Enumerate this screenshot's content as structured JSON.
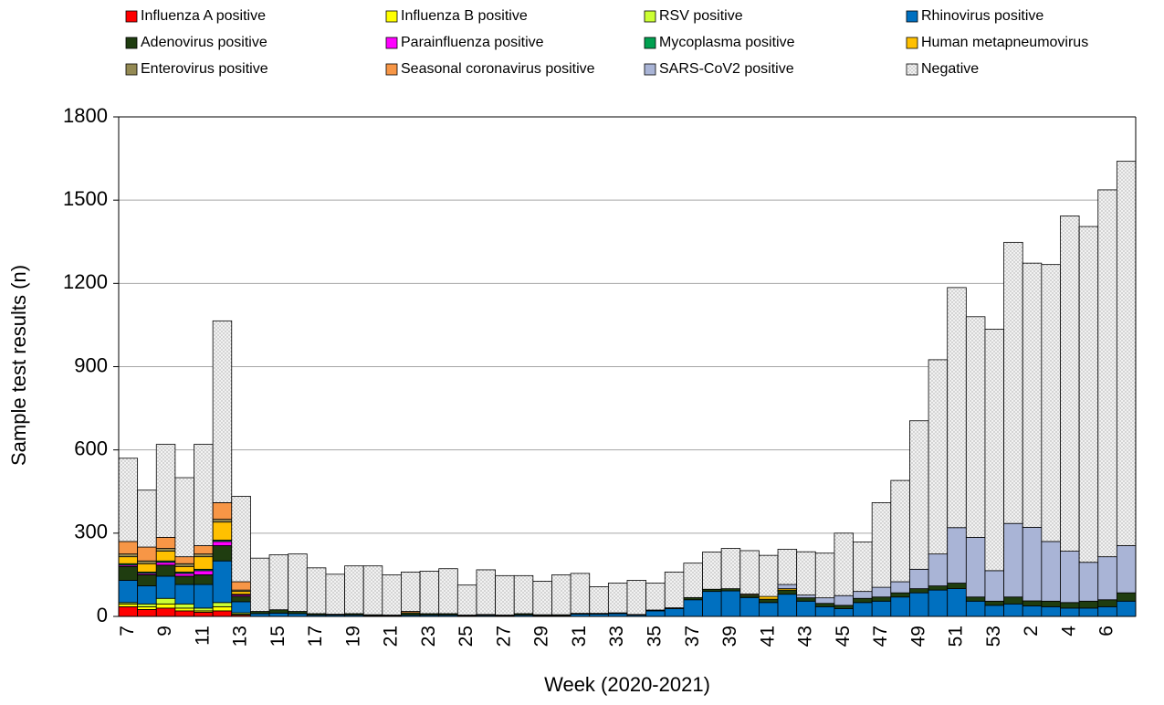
{
  "chart_data": {
    "type": "stacked_bar",
    "y_label": "Sample test results (n)",
    "x_label": "Week (2020-2021)",
    "categories": [
      "7",
      null,
      "9",
      null,
      "11",
      null,
      "13",
      null,
      "15",
      null,
      "17",
      null,
      "19",
      null,
      "21",
      null,
      "23",
      null,
      "25",
      null,
      "27",
      null,
      "29",
      null,
      "31",
      null,
      "33",
      null,
      "35",
      null,
      "37",
      null,
      "39",
      null,
      "41",
      null,
      "43",
      null,
      "45",
      null,
      "47",
      null,
      "49",
      null,
      "51",
      null,
      "53",
      null,
      "2",
      null,
      "4",
      null,
      "6",
      null
    ],
    "ylim": [
      0,
      1800
    ],
    "yticks": [
      0,
      300,
      600,
      900,
      1200,
      1500,
      1800
    ],
    "grid": true,
    "legend": "top",
    "series": [
      {
        "name": "Influenza A positive",
        "color": "#ff0000",
        "values": [
          35,
          25,
          30,
          20,
          15,
          20,
          5,
          0,
          0,
          0,
          0,
          0,
          0,
          0,
          0,
          0,
          0,
          0,
          0,
          0,
          0,
          0,
          0,
          0,
          0,
          0,
          0,
          0,
          0,
          0,
          0,
          0,
          0,
          0,
          0,
          0,
          0,
          0,
          0,
          0,
          0,
          0,
          0,
          0,
          0,
          0,
          0,
          0,
          0,
          0,
          0,
          0,
          0,
          0
        ]
      },
      {
        "name": "Influenza B positive",
        "color": "#ffff00",
        "values": [
          10,
          10,
          15,
          10,
          5,
          15,
          3,
          0,
          0,
          0,
          0,
          0,
          0,
          0,
          0,
          0,
          0,
          0,
          0,
          0,
          0,
          0,
          0,
          0,
          0,
          0,
          0,
          0,
          0,
          0,
          0,
          0,
          0,
          0,
          0,
          0,
          0,
          0,
          0,
          0,
          0,
          0,
          0,
          0,
          0,
          0,
          0,
          0,
          0,
          0,
          0,
          0,
          0,
          0
        ]
      },
      {
        "name": "RSV positive",
        "color": "#ccff33",
        "values": [
          5,
          10,
          20,
          15,
          10,
          15,
          5,
          0,
          0,
          0,
          0,
          0,
          0,
          0,
          0,
          0,
          0,
          0,
          0,
          0,
          0,
          0,
          0,
          0,
          0,
          0,
          0,
          0,
          0,
          0,
          0,
          0,
          0,
          0,
          0,
          0,
          0,
          0,
          0,
          0,
          0,
          0,
          0,
          0,
          0,
          0,
          0,
          0,
          0,
          0,
          0,
          0,
          0,
          0
        ]
      },
      {
        "name": "Rhinovirus positive",
        "color": "#0070c0",
        "values": [
          80,
          65,
          80,
          70,
          85,
          150,
          40,
          10,
          12,
          10,
          5,
          5,
          5,
          3,
          3,
          5,
          5,
          5,
          3,
          4,
          3,
          5,
          3,
          3,
          8,
          8,
          10,
          5,
          20,
          28,
          60,
          90,
          92,
          68,
          50,
          80,
          55,
          35,
          28,
          50,
          55,
          70,
          85,
          95,
          100,
          55,
          40,
          45,
          38,
          35,
          30,
          30,
          35,
          55
        ]
      },
      {
        "name": "Adenovirus positive",
        "color": "#1f3d10",
        "values": [
          50,
          40,
          40,
          30,
          35,
          55,
          20,
          8,
          12,
          8,
          5,
          3,
          5,
          3,
          2,
          8,
          5,
          5,
          2,
          3,
          2,
          5,
          3,
          3,
          3,
          3,
          3,
          2,
          3,
          3,
          8,
          8,
          8,
          8,
          12,
          15,
          12,
          12,
          12,
          15,
          15,
          15,
          15,
          15,
          20,
          15,
          15,
          25,
          18,
          20,
          20,
          25,
          25,
          30
        ]
      },
      {
        "name": "Parainfluenza positive",
        "color": "#ff00ff",
        "values": [
          5,
          5,
          10,
          10,
          15,
          15,
          5,
          0,
          0,
          0,
          0,
          0,
          0,
          0,
          0,
          0,
          0,
          0,
          0,
          0,
          0,
          0,
          0,
          0,
          0,
          0,
          0,
          0,
          0,
          0,
          0,
          0,
          0,
          0,
          0,
          0,
          0,
          0,
          0,
          0,
          0,
          0,
          0,
          0,
          0,
          0,
          0,
          0,
          0,
          0,
          0,
          0,
          0,
          0
        ]
      },
      {
        "name": "Mycoplasma positive",
        "color": "#00a050",
        "values": [
          5,
          5,
          5,
          5,
          5,
          5,
          2,
          0,
          0,
          0,
          0,
          0,
          0,
          0,
          0,
          0,
          0,
          0,
          0,
          0,
          0,
          0,
          0,
          0,
          0,
          0,
          0,
          0,
          0,
          0,
          0,
          0,
          0,
          0,
          0,
          0,
          0,
          0,
          0,
          0,
          0,
          0,
          0,
          0,
          0,
          0,
          0,
          0,
          0,
          0,
          0,
          0,
          0,
          0
        ]
      },
      {
        "name": "Human metapneumovirus",
        "color": "#ffc000",
        "values": [
          25,
          30,
          35,
          20,
          45,
          65,
          10,
          0,
          0,
          0,
          0,
          0,
          0,
          0,
          0,
          0,
          0,
          0,
          0,
          0,
          0,
          0,
          0,
          0,
          0,
          0,
          0,
          0,
          0,
          0,
          0,
          0,
          0,
          0,
          10,
          5,
          0,
          0,
          0,
          0,
          0,
          0,
          0,
          0,
          0,
          0,
          0,
          0,
          0,
          0,
          0,
          0,
          0,
          0
        ]
      },
      {
        "name": "Enterovirus positive",
        "color": "#948a54",
        "values": [
          10,
          10,
          10,
          10,
          10,
          10,
          5,
          0,
          0,
          0,
          0,
          0,
          0,
          0,
          0,
          0,
          0,
          0,
          0,
          0,
          0,
          0,
          0,
          0,
          0,
          0,
          0,
          0,
          0,
          0,
          0,
          0,
          0,
          5,
          0,
          0,
          0,
          0,
          0,
          0,
          0,
          0,
          0,
          0,
          0,
          0,
          0,
          0,
          0,
          0,
          0,
          0,
          0,
          0
        ]
      },
      {
        "name": "Seasonal coronavirus positive",
        "color": "#f79646",
        "values": [
          45,
          50,
          40,
          25,
          30,
          60,
          30,
          0,
          0,
          0,
          0,
          0,
          0,
          0,
          0,
          5,
          0,
          0,
          0,
          0,
          0,
          0,
          0,
          0,
          0,
          0,
          0,
          0,
          0,
          0,
          0,
          0,
          0,
          0,
          0,
          0,
          0,
          0,
          0,
          0,
          0,
          0,
          0,
          0,
          0,
          0,
          0,
          0,
          0,
          0,
          0,
          0,
          0,
          0
        ]
      },
      {
        "name": "SARS-CoV2 positive",
        "color": "#a9b4d6",
        "values": [
          0,
          0,
          0,
          0,
          0,
          0,
          0,
          0,
          0,
          0,
          0,
          0,
          0,
          0,
          0,
          0,
          0,
          0,
          0,
          0,
          0,
          0,
          0,
          0,
          0,
          0,
          0,
          0,
          0,
          0,
          0,
          0,
          0,
          0,
          0,
          15,
          10,
          20,
          35,
          25,
          35,
          40,
          70,
          115,
          200,
          215,
          110,
          265,
          265,
          215,
          185,
          140,
          155,
          170
        ]
      },
      {
        "name": "Negative",
        "color": "#f2f2f2",
        "pattern": "dotted",
        "values": [
          300,
          205,
          335,
          285,
          365,
          655,
          308,
          192,
          198,
          207,
          165,
          144,
          172,
          176,
          145,
          142,
          153,
          162,
          108,
          161,
          142,
          137,
          121,
          144,
          144,
          96,
          107,
          123,
          97,
          129,
          124,
          134,
          145,
          156,
          148,
          127,
          156,
          161,
          225,
          178,
          305,
          365,
          535,
          700,
          865,
          795,
          870,
          1013,
          952,
          998,
          1208,
          1210,
          1322,
          1385
        ]
      }
    ]
  }
}
